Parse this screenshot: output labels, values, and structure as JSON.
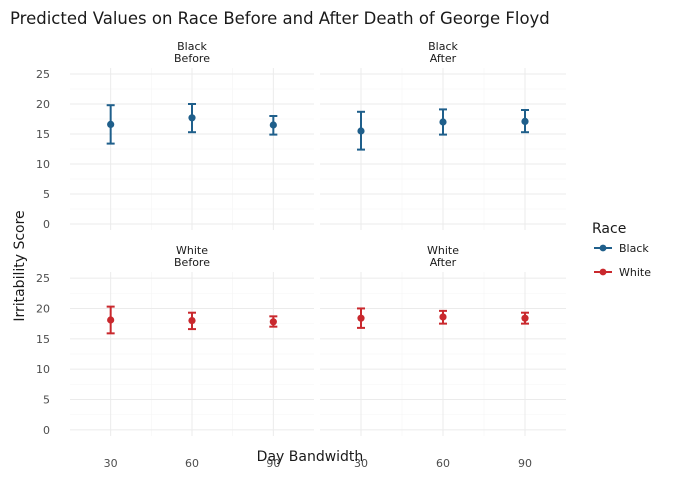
{
  "chart_data": {
    "type": "scatter",
    "subtype": "facet-pointrange",
    "title": "Predicted Values on Race Before and After Death of George Floyd",
    "xlabel": "Day Bandwidth",
    "ylabel": "Irritability Score",
    "x_ticks": [
      "30",
      "60",
      "90"
    ],
    "y_ticks": [
      "0",
      "5",
      "10",
      "15",
      "20",
      "25"
    ],
    "ylim": [
      -1,
      26
    ],
    "grid": true,
    "legend": {
      "title": "Race",
      "position": "right",
      "entries": [
        {
          "label": "Black",
          "color": "#1f5f8b"
        },
        {
          "label": "White",
          "color": "#c9282d"
        }
      ]
    },
    "panels": [
      {
        "race": "Black",
        "period": "Before",
        "color": "#1f5f8b",
        "points": [
          {
            "x": 30,
            "y": 16.6,
            "low": 13.4,
            "high": 19.8
          },
          {
            "x": 60,
            "y": 17.7,
            "low": 15.3,
            "high": 20.0
          },
          {
            "x": 90,
            "y": 16.5,
            "low": 14.9,
            "high": 18.0
          }
        ]
      },
      {
        "race": "Black",
        "period": "After",
        "color": "#1f5f8b",
        "points": [
          {
            "x": 30,
            "y": 15.5,
            "low": 12.4,
            "high": 18.7
          },
          {
            "x": 60,
            "y": 17.0,
            "low": 14.9,
            "high": 19.1
          },
          {
            "x": 90,
            "y": 17.1,
            "low": 15.3,
            "high": 19.0
          }
        ]
      },
      {
        "race": "White",
        "period": "Before",
        "color": "#c9282d",
        "points": [
          {
            "x": 30,
            "y": 18.1,
            "low": 15.9,
            "high": 20.3
          },
          {
            "x": 60,
            "y": 18.0,
            "low": 16.6,
            "high": 19.3
          },
          {
            "x": 90,
            "y": 17.8,
            "low": 17.0,
            "high": 18.7
          }
        ]
      },
      {
        "race": "White",
        "period": "After",
        "color": "#c9282d",
        "points": [
          {
            "x": 30,
            "y": 18.4,
            "low": 16.8,
            "high": 20.0
          },
          {
            "x": 60,
            "y": 18.6,
            "low": 17.5,
            "high": 19.6
          },
          {
            "x": 90,
            "y": 18.4,
            "low": 17.5,
            "high": 19.3
          }
        ]
      }
    ]
  }
}
